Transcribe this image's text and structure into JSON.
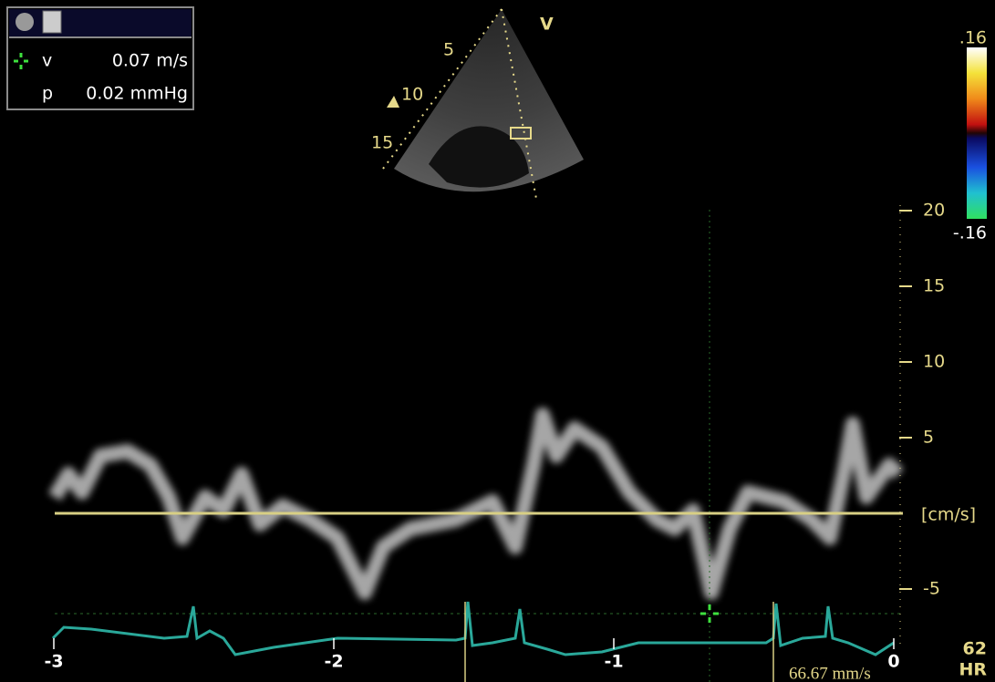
{
  "measurements": {
    "velocity": {
      "symbol": "v",
      "value": "0.07 m/s"
    },
    "pressure": {
      "symbol": "p",
      "value": "0.02 mmHg"
    }
  },
  "sector": {
    "view_label": "V",
    "depth_labels": [
      "5",
      "10",
      "15"
    ]
  },
  "color_bar": {
    "top": ".16",
    "bottom": "-.16"
  },
  "velocity_scale": {
    "ticks": [
      20,
      15,
      10,
      5,
      -5
    ],
    "unit": "[cm/s]"
  },
  "time_axis": {
    "ticks": [
      -3,
      -2,
      -1,
      0
    ]
  },
  "heart_rate": {
    "value": "62",
    "label": "HR"
  },
  "sweep_speed": "66.67 mm/s"
}
